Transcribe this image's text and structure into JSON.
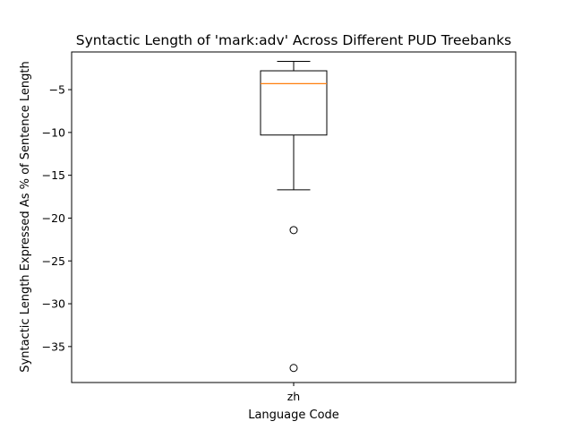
{
  "chart_data": {
    "type": "boxplot",
    "title": "Syntactic Length of 'mark:adv' Across Different PUD Treebanks",
    "xlabel": "Language Code",
    "ylabel": "Syntactic Length Expressed As % of Sentence Length",
    "categories": [
      "zh"
    ],
    "ylim": [
      -39.2,
      -0.6
    ],
    "yticks": [
      -5,
      -10,
      -15,
      -20,
      -25,
      -30,
      -35
    ],
    "ytick_labels": [
      "−5",
      "−10",
      "−15",
      "−20",
      "−25",
      "−30",
      "−35"
    ],
    "grid": false,
    "boxes": [
      {
        "category": "zh",
        "whisker_high": -1.7,
        "q3": -2.8,
        "median": -4.3,
        "q1": -10.3,
        "whisker_low": -16.7,
        "outliers": [
          -21.4,
          -37.5
        ]
      }
    ],
    "colors": {
      "box": "#000000",
      "median": "#ff7f0e",
      "outlier": "#000000"
    }
  }
}
